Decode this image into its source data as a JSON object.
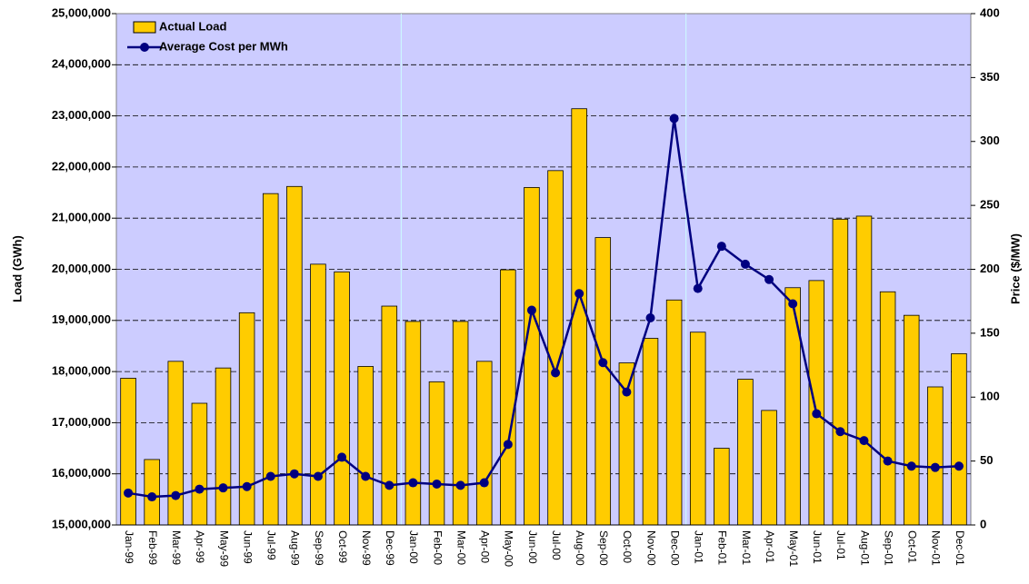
{
  "chart_data": {
    "type": "bar-line",
    "y_label": "Load (GWh)",
    "y2_label": "Price ($/MW)",
    "categories": [
      "Jan-99",
      "Feb-99",
      "Mar-99",
      "Apr-99",
      "May-99",
      "Jun-99",
      "Jul-99",
      "Aug-99",
      "Sep-99",
      "Oct-99",
      "Nov-99",
      "Dec-99",
      "Jan-00",
      "Feb-00",
      "Mar-00",
      "Apr-00",
      "May-00",
      "Jun-00",
      "Jul-00",
      "Aug-00",
      "Sep-00",
      "Oct-00",
      "Nov-00",
      "Dec-00",
      "Jan-01",
      "Feb-01",
      "Mar-01",
      "Apr-01",
      "May-01",
      "Jun-01",
      "Jul-01",
      "Aug-01",
      "Sep-01",
      "Oct-01",
      "Nov-01",
      "Dec-01"
    ],
    "series": [
      {
        "name": "Actual Load",
        "type": "bar",
        "color": "#ffcc00",
        "values": [
          17870000,
          16280000,
          18200000,
          17380000,
          18070000,
          19150000,
          21480000,
          21620000,
          20100000,
          19950000,
          18100000,
          19280000,
          18980000,
          17800000,
          18980000,
          18200000,
          19990000,
          21600000,
          21930000,
          23140000,
          20620000,
          18170000,
          18650000,
          19400000,
          18770000,
          16500000,
          17850000,
          17240000,
          19640000,
          19780000,
          20980000,
          21040000,
          19560000,
          19100000,
          17700000,
          18350000
        ]
      },
      {
        "name": "Average Cost per MWh",
        "type": "line",
        "axis": "y2",
        "color": "#000080",
        "values": [
          25,
          22,
          23,
          28,
          29,
          30,
          38,
          40,
          38,
          53,
          38,
          31,
          33,
          32,
          31,
          33,
          63,
          168,
          119,
          181,
          127,
          104,
          162,
          318,
          185,
          218,
          204,
          192,
          173,
          87,
          73,
          66,
          50,
          46,
          45,
          46
        ]
      }
    ],
    "ylim": [
      15000000,
      25000000
    ],
    "yticks": [
      {
        "value": 15000000,
        "label": "15,000,000"
      },
      {
        "value": 16000000,
        "label": "16,000,000"
      },
      {
        "value": 17000000,
        "label": "17,000,000"
      },
      {
        "value": 18000000,
        "label": "18,000,000"
      },
      {
        "value": 19000000,
        "label": "19,000,000"
      },
      {
        "value": 20000000,
        "label": "20,000,000"
      },
      {
        "value": 21000000,
        "label": "21,000,000"
      },
      {
        "value": 22000000,
        "label": "22,000,000"
      },
      {
        "value": 23000000,
        "label": "23,000,000"
      },
      {
        "value": 24000000,
        "label": "24,000,000"
      },
      {
        "value": 25000000,
        "label": "25,000,000"
      }
    ],
    "y2lim": [
      0,
      400
    ],
    "y2ticks": [
      0,
      50,
      100,
      150,
      200,
      250,
      300,
      350,
      400
    ],
    "grid": true,
    "legend": "upper left"
  }
}
